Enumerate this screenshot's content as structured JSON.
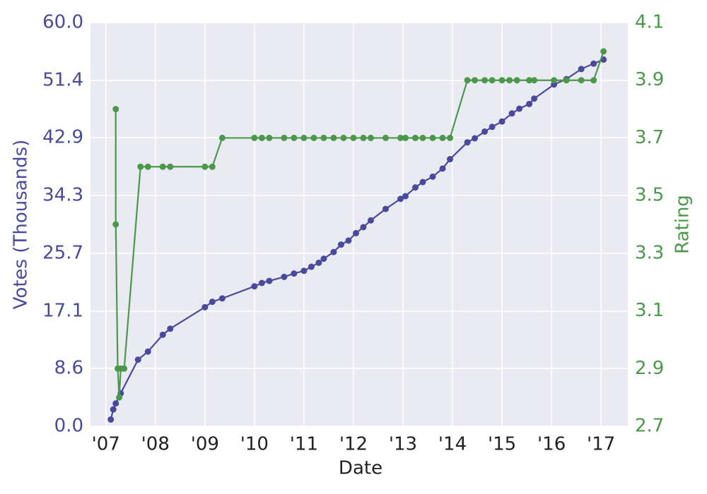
{
  "chart_data": {
    "type": "line",
    "xlabel": "Date",
    "ylabel": "Votes (Thousands)",
    "y2label": "Rating",
    "background": "#eaeaf2",
    "grid": true,
    "xlim": [
      2006.69,
      2017.54
    ],
    "xticks": [
      {
        "value": 2007,
        "label": "'07"
      },
      {
        "value": 2008,
        "label": "'08"
      },
      {
        "value": 2009,
        "label": "'09"
      },
      {
        "value": 2010,
        "label": "'10"
      },
      {
        "value": 2011,
        "label": "'11"
      },
      {
        "value": 2012,
        "label": "'12"
      },
      {
        "value": 2013,
        "label": "'13"
      },
      {
        "value": 2014,
        "label": "'14"
      },
      {
        "value": 2015,
        "label": "'15"
      },
      {
        "value": 2016,
        "label": "'16"
      },
      {
        "value": 2017,
        "label": "'17"
      }
    ],
    "ylim": [
      0,
      60
    ],
    "yticks": [
      {
        "value": 0,
        "label": "0.0"
      },
      8.6,
      17.1,
      25.7,
      34.3,
      42.9,
      51.4,
      {
        "value": 60,
        "label": "60.0"
      }
    ],
    "y2lim": [
      2.7,
      4.1
    ],
    "y2ticks": [
      2.7,
      2.9,
      3.1,
      3.3,
      3.5,
      3.7,
      3.9,
      4.1
    ],
    "series": [
      {
        "name": "Votes",
        "color": "#4a4a9c",
        "axis": "y",
        "x": [
          2007.1,
          2007.15,
          2007.2,
          2007.3,
          2007.65,
          2007.85,
          2008.15,
          2008.3,
          2009.0,
          2009.15,
          2009.35,
          2010.0,
          2010.15,
          2010.3,
          2010.6,
          2010.8,
          2011.0,
          2011.15,
          2011.3,
          2011.4,
          2011.6,
          2011.75,
          2011.9,
          2012.05,
          2012.2,
          2012.35,
          2012.65,
          2012.95,
          2013.05,
          2013.25,
          2013.4,
          2013.6,
          2013.8,
          2013.95,
          2014.3,
          2014.45,
          2014.65,
          2014.8,
          2015.0,
          2015.2,
          2015.35,
          2015.55,
          2015.65,
          2016.05,
          2016.3,
          2016.6,
          2016.85,
          2017.05
        ],
        "values": [
          1.0,
          2.5,
          3.4,
          4.9,
          9.9,
          11.1,
          13.6,
          14.5,
          17.7,
          18.5,
          19.0,
          20.8,
          21.3,
          21.6,
          22.2,
          22.7,
          23.1,
          23.7,
          24.3,
          24.9,
          25.9,
          27.0,
          27.6,
          28.7,
          29.6,
          30.6,
          32.3,
          33.8,
          34.2,
          35.5,
          36.3,
          37.1,
          38.3,
          39.7,
          42.2,
          42.8,
          43.8,
          44.5,
          45.3,
          46.5,
          47.2,
          47.9,
          48.7,
          50.8,
          51.6,
          53.1,
          53.9,
          54.5
        ]
      },
      {
        "name": "Rating",
        "color": "#4b984b",
        "axis": "y2",
        "x": [
          2007.2,
          2007.2,
          2007.24,
          2007.27,
          2007.3,
          2007.37,
          2007.7,
          2007.85,
          2008.15,
          2008.3,
          2009.0,
          2009.15,
          2009.35,
          2010.0,
          2010.15,
          2010.3,
          2010.6,
          2010.8,
          2011.0,
          2011.2,
          2011.4,
          2011.6,
          2011.8,
          2012.0,
          2012.2,
          2012.35,
          2012.65,
          2012.95,
          2013.05,
          2013.25,
          2013.4,
          2013.6,
          2013.8,
          2013.95,
          2014.3,
          2014.45,
          2014.65,
          2014.8,
          2015.0,
          2015.15,
          2015.3,
          2015.55,
          2015.65,
          2016.05,
          2016.3,
          2016.6,
          2016.85,
          2017.05
        ],
        "values": [
          3.8,
          3.4,
          2.9,
          2.8,
          2.9,
          2.9,
          3.6,
          3.6,
          3.6,
          3.6,
          3.6,
          3.6,
          3.7,
          3.7,
          3.7,
          3.7,
          3.7,
          3.7,
          3.7,
          3.7,
          3.7,
          3.7,
          3.7,
          3.7,
          3.7,
          3.7,
          3.7,
          3.7,
          3.7,
          3.7,
          3.7,
          3.7,
          3.7,
          3.7,
          3.9,
          3.9,
          3.9,
          3.9,
          3.9,
          3.9,
          3.9,
          3.9,
          3.9,
          3.9,
          3.9,
          3.9,
          3.9,
          4.0
        ]
      }
    ]
  }
}
